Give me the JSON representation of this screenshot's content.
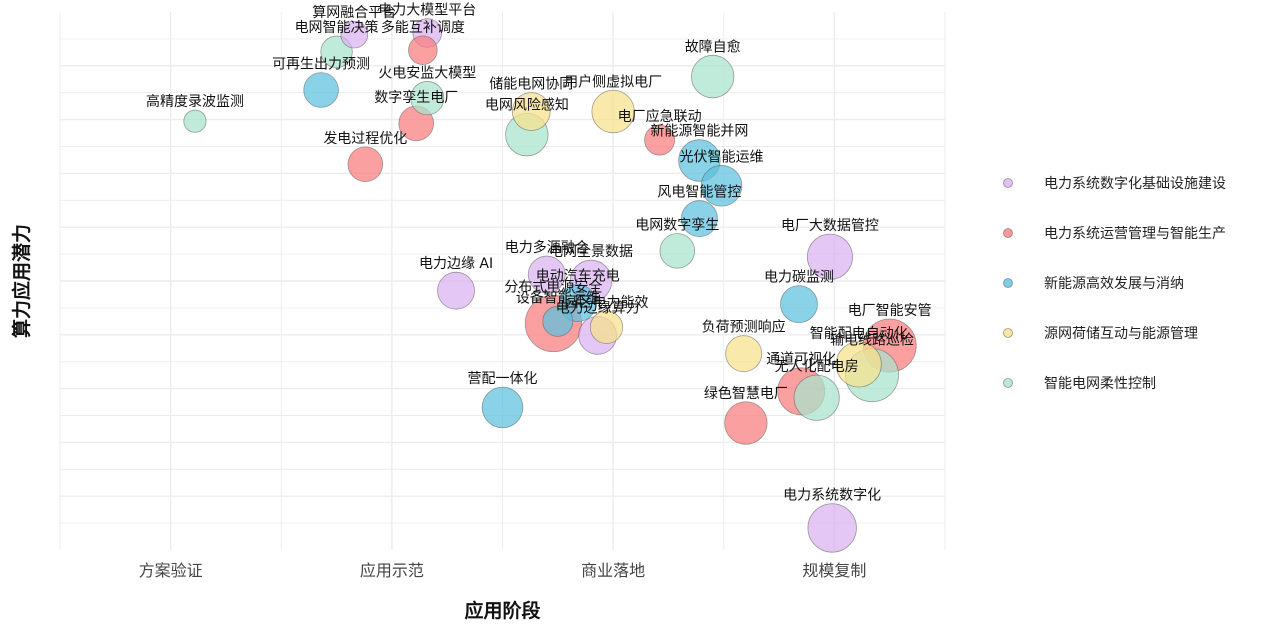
{
  "chart_data": {
    "type": "bubble",
    "xlabel": "应用阶段",
    "ylabel": "算力应用潜力",
    "x_tick_labels": [
      "方案验证",
      "应用示范",
      "商业落地",
      "规模复制"
    ],
    "xlim": [
      0.5,
      4.5
    ],
    "ylim": [
      0,
      100
    ],
    "legend_position": "right",
    "categories": [
      {
        "name": "电力系统数字化基础设施建设",
        "color": "#D9B2F0"
      },
      {
        "name": "电力系统运营管理与智能生产",
        "color": "#F97C7C"
      },
      {
        "name": "新能源高效发展与消纳",
        "color": "#5BC0DE"
      },
      {
        "name": "源网荷储互动与能源管理",
        "color": "#F7E08A"
      },
      {
        "name": "智能电网柔性控制",
        "color": "#A7E3CC"
      }
    ],
    "points": [
      {
        "label": "算网融合平台",
        "cat": 0,
        "x": 1.83,
        "y": 95.8,
        "size": 0.28
      },
      {
        "label": "电力大模型平台",
        "cat": 0,
        "x": 2.16,
        "y": 96.1,
        "size": 0.32
      },
      {
        "label": "电网智能决策",
        "cat": 4,
        "x": 1.75,
        "y": 92.6,
        "size": 0.38
      },
      {
        "label": "多能互补调度",
        "cat": 1,
        "x": 2.14,
        "y": 92.9,
        "size": 0.32
      },
      {
        "label": "用户侧虚拟电厂",
        "cat": 3,
        "x": 3.0,
        "y": 81.5,
        "size": 0.62
      },
      {
        "label": "故障自愈",
        "cat": 4,
        "x": 3.45,
        "y": 88.0,
        "size": 0.62
      },
      {
        "label": "火电安监大模型",
        "cat": 4,
        "x": 2.16,
        "y": 84.0,
        "size": 0.42
      },
      {
        "label": "可再生出力预测",
        "cat": 2,
        "x": 1.68,
        "y": 85.5,
        "size": 0.45
      },
      {
        "label": "储能电网协同",
        "cat": 3,
        "x": 2.63,
        "y": 81.5,
        "size": 0.52
      },
      {
        "label": "电厂应急联动",
        "cat": 1,
        "x": 3.21,
        "y": 76.2,
        "size": 0.35
      },
      {
        "label": "数字孪生电厂",
        "cat": 1,
        "x": 2.11,
        "y": 79.3,
        "size": 0.45
      },
      {
        "label": "电网风险感知",
        "cat": 4,
        "x": 2.61,
        "y": 77.2,
        "size": 0.62
      },
      {
        "label": "高精度录波监测",
        "cat": 4,
        "x": 1.11,
        "y": 79.7,
        "size": 0.18
      },
      {
        "label": "新能源智能并网",
        "cat": 2,
        "x": 3.39,
        "y": 72.4,
        "size": 0.6
      },
      {
        "label": "发电过程优化",
        "cat": 1,
        "x": 1.88,
        "y": 71.7,
        "size": 0.45
      },
      {
        "label": "光伏智能运维",
        "cat": 2,
        "x": 3.49,
        "y": 67.7,
        "size": 0.58
      },
      {
        "label": "风电智能管控",
        "cat": 2,
        "x": 3.39,
        "y": 61.6,
        "size": 0.48
      },
      {
        "label": "电厂大数据管控",
        "cat": 0,
        "x": 3.98,
        "y": 54.5,
        "size": 0.68
      },
      {
        "label": "电网数字孪生",
        "cat": 4,
        "x": 3.29,
        "y": 55.6,
        "size": 0.45
      },
      {
        "label": "电网全景数据",
        "cat": 0,
        "x": 2.9,
        "y": 50.0,
        "size": 0.6
      },
      {
        "label": "电力多源融合",
        "cat": 0,
        "x": 2.7,
        "y": 51.2,
        "size": 0.5
      },
      {
        "label": "电力碳监测",
        "cat": 2,
        "x": 3.84,
        "y": 45.7,
        "size": 0.5
      },
      {
        "label": "电力边缘 AI",
        "cat": 0,
        "x": 2.29,
        "y": 48.2,
        "size": 0.5
      },
      {
        "label": "电动汽车充电",
        "cat": 2,
        "x": 2.84,
        "y": 45.9,
        "size": 0.5
      },
      {
        "label": "分布式电源安全",
        "cat": 1,
        "x": 2.73,
        "y": 42.1,
        "size": 0.92
      },
      {
        "label": "设备智能运维",
        "cat": 2,
        "x": 2.75,
        "y": 42.5,
        "size": 0.35
      },
      {
        "label": "电力边缘算力",
        "cat": 0,
        "x": 2.93,
        "y": 39.9,
        "size": 0.52
      },
      {
        "label": "园区电力能效",
        "cat": 3,
        "x": 2.97,
        "y": 41.4,
        "size": 0.4
      },
      {
        "label": "电厂智能安管",
        "cat": 1,
        "x": 4.25,
        "y": 38.0,
        "size": 0.85
      },
      {
        "label": "负荷预测响应",
        "cat": 3,
        "x": 3.59,
        "y": 36.5,
        "size": 0.48
      },
      {
        "label": "输电线路巡检",
        "cat": 4,
        "x": 4.17,
        "y": 32.5,
        "size": 0.85
      },
      {
        "label": "智能配电自动化",
        "cat": 3,
        "x": 4.11,
        "y": 34.5,
        "size": 0.68
      },
      {
        "label": "通道可视化",
        "cat": 1,
        "x": 3.85,
        "y": 29.5,
        "size": 0.72
      },
      {
        "label": "无人化配电房",
        "cat": 4,
        "x": 3.92,
        "y": 28.3,
        "size": 0.68
      },
      {
        "label": "绿色智慧电厂",
        "cat": 1,
        "x": 3.6,
        "y": 23.6,
        "size": 0.62
      },
      {
        "label": "营配一体化",
        "cat": 2,
        "x": 2.5,
        "y": 26.5,
        "size": 0.58
      },
      {
        "label": "电力系统数字化",
        "cat": 0,
        "x": 3.99,
        "y": 4.1,
        "size": 0.75
      }
    ]
  }
}
